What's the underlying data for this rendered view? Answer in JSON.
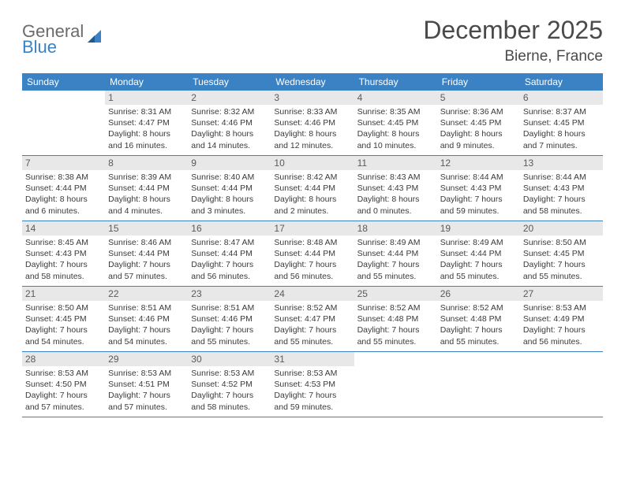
{
  "logo": {
    "text1": "General",
    "text2": "Blue"
  },
  "header": {
    "title": "December 2025",
    "location": "Bierne, France"
  },
  "colors": {
    "header_bar": "#3a82c4",
    "day_num_bg": "#e8e8e8",
    "text": "#3a3a3a",
    "logo_gray": "#6b6b6b",
    "logo_blue": "#3a82c4",
    "rule": "#3a82c4"
  },
  "layout": {
    "columns": 7,
    "rows": 5
  },
  "dow": [
    "Sunday",
    "Monday",
    "Tuesday",
    "Wednesday",
    "Thursday",
    "Friday",
    "Saturday"
  ],
  "cells": [
    {
      "day": "",
      "sunrise": "",
      "sunset": "",
      "daylight": ""
    },
    {
      "day": "1",
      "sunrise": "Sunrise: 8:31 AM",
      "sunset": "Sunset: 4:47 PM",
      "daylight": "Daylight: 8 hours and 16 minutes."
    },
    {
      "day": "2",
      "sunrise": "Sunrise: 8:32 AM",
      "sunset": "Sunset: 4:46 PM",
      "daylight": "Daylight: 8 hours and 14 minutes."
    },
    {
      "day": "3",
      "sunrise": "Sunrise: 8:33 AM",
      "sunset": "Sunset: 4:46 PM",
      "daylight": "Daylight: 8 hours and 12 minutes."
    },
    {
      "day": "4",
      "sunrise": "Sunrise: 8:35 AM",
      "sunset": "Sunset: 4:45 PM",
      "daylight": "Daylight: 8 hours and 10 minutes."
    },
    {
      "day": "5",
      "sunrise": "Sunrise: 8:36 AM",
      "sunset": "Sunset: 4:45 PM",
      "daylight": "Daylight: 8 hours and 9 minutes."
    },
    {
      "day": "6",
      "sunrise": "Sunrise: 8:37 AM",
      "sunset": "Sunset: 4:45 PM",
      "daylight": "Daylight: 8 hours and 7 minutes."
    },
    {
      "day": "7",
      "sunrise": "Sunrise: 8:38 AM",
      "sunset": "Sunset: 4:44 PM",
      "daylight": "Daylight: 8 hours and 6 minutes."
    },
    {
      "day": "8",
      "sunrise": "Sunrise: 8:39 AM",
      "sunset": "Sunset: 4:44 PM",
      "daylight": "Daylight: 8 hours and 4 minutes."
    },
    {
      "day": "9",
      "sunrise": "Sunrise: 8:40 AM",
      "sunset": "Sunset: 4:44 PM",
      "daylight": "Daylight: 8 hours and 3 minutes."
    },
    {
      "day": "10",
      "sunrise": "Sunrise: 8:42 AM",
      "sunset": "Sunset: 4:44 PM",
      "daylight": "Daylight: 8 hours and 2 minutes."
    },
    {
      "day": "11",
      "sunrise": "Sunrise: 8:43 AM",
      "sunset": "Sunset: 4:43 PM",
      "daylight": "Daylight: 8 hours and 0 minutes."
    },
    {
      "day": "12",
      "sunrise": "Sunrise: 8:44 AM",
      "sunset": "Sunset: 4:43 PM",
      "daylight": "Daylight: 7 hours and 59 minutes."
    },
    {
      "day": "13",
      "sunrise": "Sunrise: 8:44 AM",
      "sunset": "Sunset: 4:43 PM",
      "daylight": "Daylight: 7 hours and 58 minutes."
    },
    {
      "day": "14",
      "sunrise": "Sunrise: 8:45 AM",
      "sunset": "Sunset: 4:43 PM",
      "daylight": "Daylight: 7 hours and 58 minutes."
    },
    {
      "day": "15",
      "sunrise": "Sunrise: 8:46 AM",
      "sunset": "Sunset: 4:44 PM",
      "daylight": "Daylight: 7 hours and 57 minutes."
    },
    {
      "day": "16",
      "sunrise": "Sunrise: 8:47 AM",
      "sunset": "Sunset: 4:44 PM",
      "daylight": "Daylight: 7 hours and 56 minutes."
    },
    {
      "day": "17",
      "sunrise": "Sunrise: 8:48 AM",
      "sunset": "Sunset: 4:44 PM",
      "daylight": "Daylight: 7 hours and 56 minutes."
    },
    {
      "day": "18",
      "sunrise": "Sunrise: 8:49 AM",
      "sunset": "Sunset: 4:44 PM",
      "daylight": "Daylight: 7 hours and 55 minutes."
    },
    {
      "day": "19",
      "sunrise": "Sunrise: 8:49 AM",
      "sunset": "Sunset: 4:44 PM",
      "daylight": "Daylight: 7 hours and 55 minutes."
    },
    {
      "day": "20",
      "sunrise": "Sunrise: 8:50 AM",
      "sunset": "Sunset: 4:45 PM",
      "daylight": "Daylight: 7 hours and 55 minutes."
    },
    {
      "day": "21",
      "sunrise": "Sunrise: 8:50 AM",
      "sunset": "Sunset: 4:45 PM",
      "daylight": "Daylight: 7 hours and 54 minutes."
    },
    {
      "day": "22",
      "sunrise": "Sunrise: 8:51 AM",
      "sunset": "Sunset: 4:46 PM",
      "daylight": "Daylight: 7 hours and 54 minutes."
    },
    {
      "day": "23",
      "sunrise": "Sunrise: 8:51 AM",
      "sunset": "Sunset: 4:46 PM",
      "daylight": "Daylight: 7 hours and 55 minutes."
    },
    {
      "day": "24",
      "sunrise": "Sunrise: 8:52 AM",
      "sunset": "Sunset: 4:47 PM",
      "daylight": "Daylight: 7 hours and 55 minutes."
    },
    {
      "day": "25",
      "sunrise": "Sunrise: 8:52 AM",
      "sunset": "Sunset: 4:48 PM",
      "daylight": "Daylight: 7 hours and 55 minutes."
    },
    {
      "day": "26",
      "sunrise": "Sunrise: 8:52 AM",
      "sunset": "Sunset: 4:48 PM",
      "daylight": "Daylight: 7 hours and 55 minutes."
    },
    {
      "day": "27",
      "sunrise": "Sunrise: 8:53 AM",
      "sunset": "Sunset: 4:49 PM",
      "daylight": "Daylight: 7 hours and 56 minutes."
    },
    {
      "day": "28",
      "sunrise": "Sunrise: 8:53 AM",
      "sunset": "Sunset: 4:50 PM",
      "daylight": "Daylight: 7 hours and 57 minutes."
    },
    {
      "day": "29",
      "sunrise": "Sunrise: 8:53 AM",
      "sunset": "Sunset: 4:51 PM",
      "daylight": "Daylight: 7 hours and 57 minutes."
    },
    {
      "day": "30",
      "sunrise": "Sunrise: 8:53 AM",
      "sunset": "Sunset: 4:52 PM",
      "daylight": "Daylight: 7 hours and 58 minutes."
    },
    {
      "day": "31",
      "sunrise": "Sunrise: 8:53 AM",
      "sunset": "Sunset: 4:53 PM",
      "daylight": "Daylight: 7 hours and 59 minutes."
    },
    {
      "day": "",
      "sunrise": "",
      "sunset": "",
      "daylight": ""
    },
    {
      "day": "",
      "sunrise": "",
      "sunset": "",
      "daylight": ""
    },
    {
      "day": "",
      "sunrise": "",
      "sunset": "",
      "daylight": ""
    }
  ]
}
